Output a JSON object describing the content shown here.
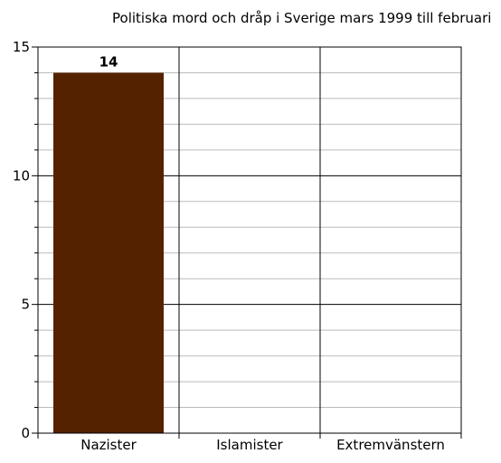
{
  "chart_data": {
    "type": "bar",
    "title": "Politiska mord och dråp i Sverige mars 1999 till februari",
    "xlabel": "",
    "ylabel": "",
    "categories": [
      "Nazister",
      "Islamister",
      "Extremvänstern"
    ],
    "values": [
      14,
      0,
      0
    ],
    "value_labels": [
      "14",
      "",
      ""
    ],
    "ylim": [
      0,
      15
    ],
    "y_major_ticks": [
      0,
      5,
      10,
      15
    ],
    "y_tick_labels": [
      "0",
      "5",
      "10",
      "15"
    ],
    "y_minor_step": 1,
    "grid": true,
    "legend": "none",
    "colors": {
      "bar": "#552200",
      "major_grid": "#000000",
      "minor_grid": "#bbbbbb",
      "axis": "#000000",
      "text": "#000000"
    }
  }
}
